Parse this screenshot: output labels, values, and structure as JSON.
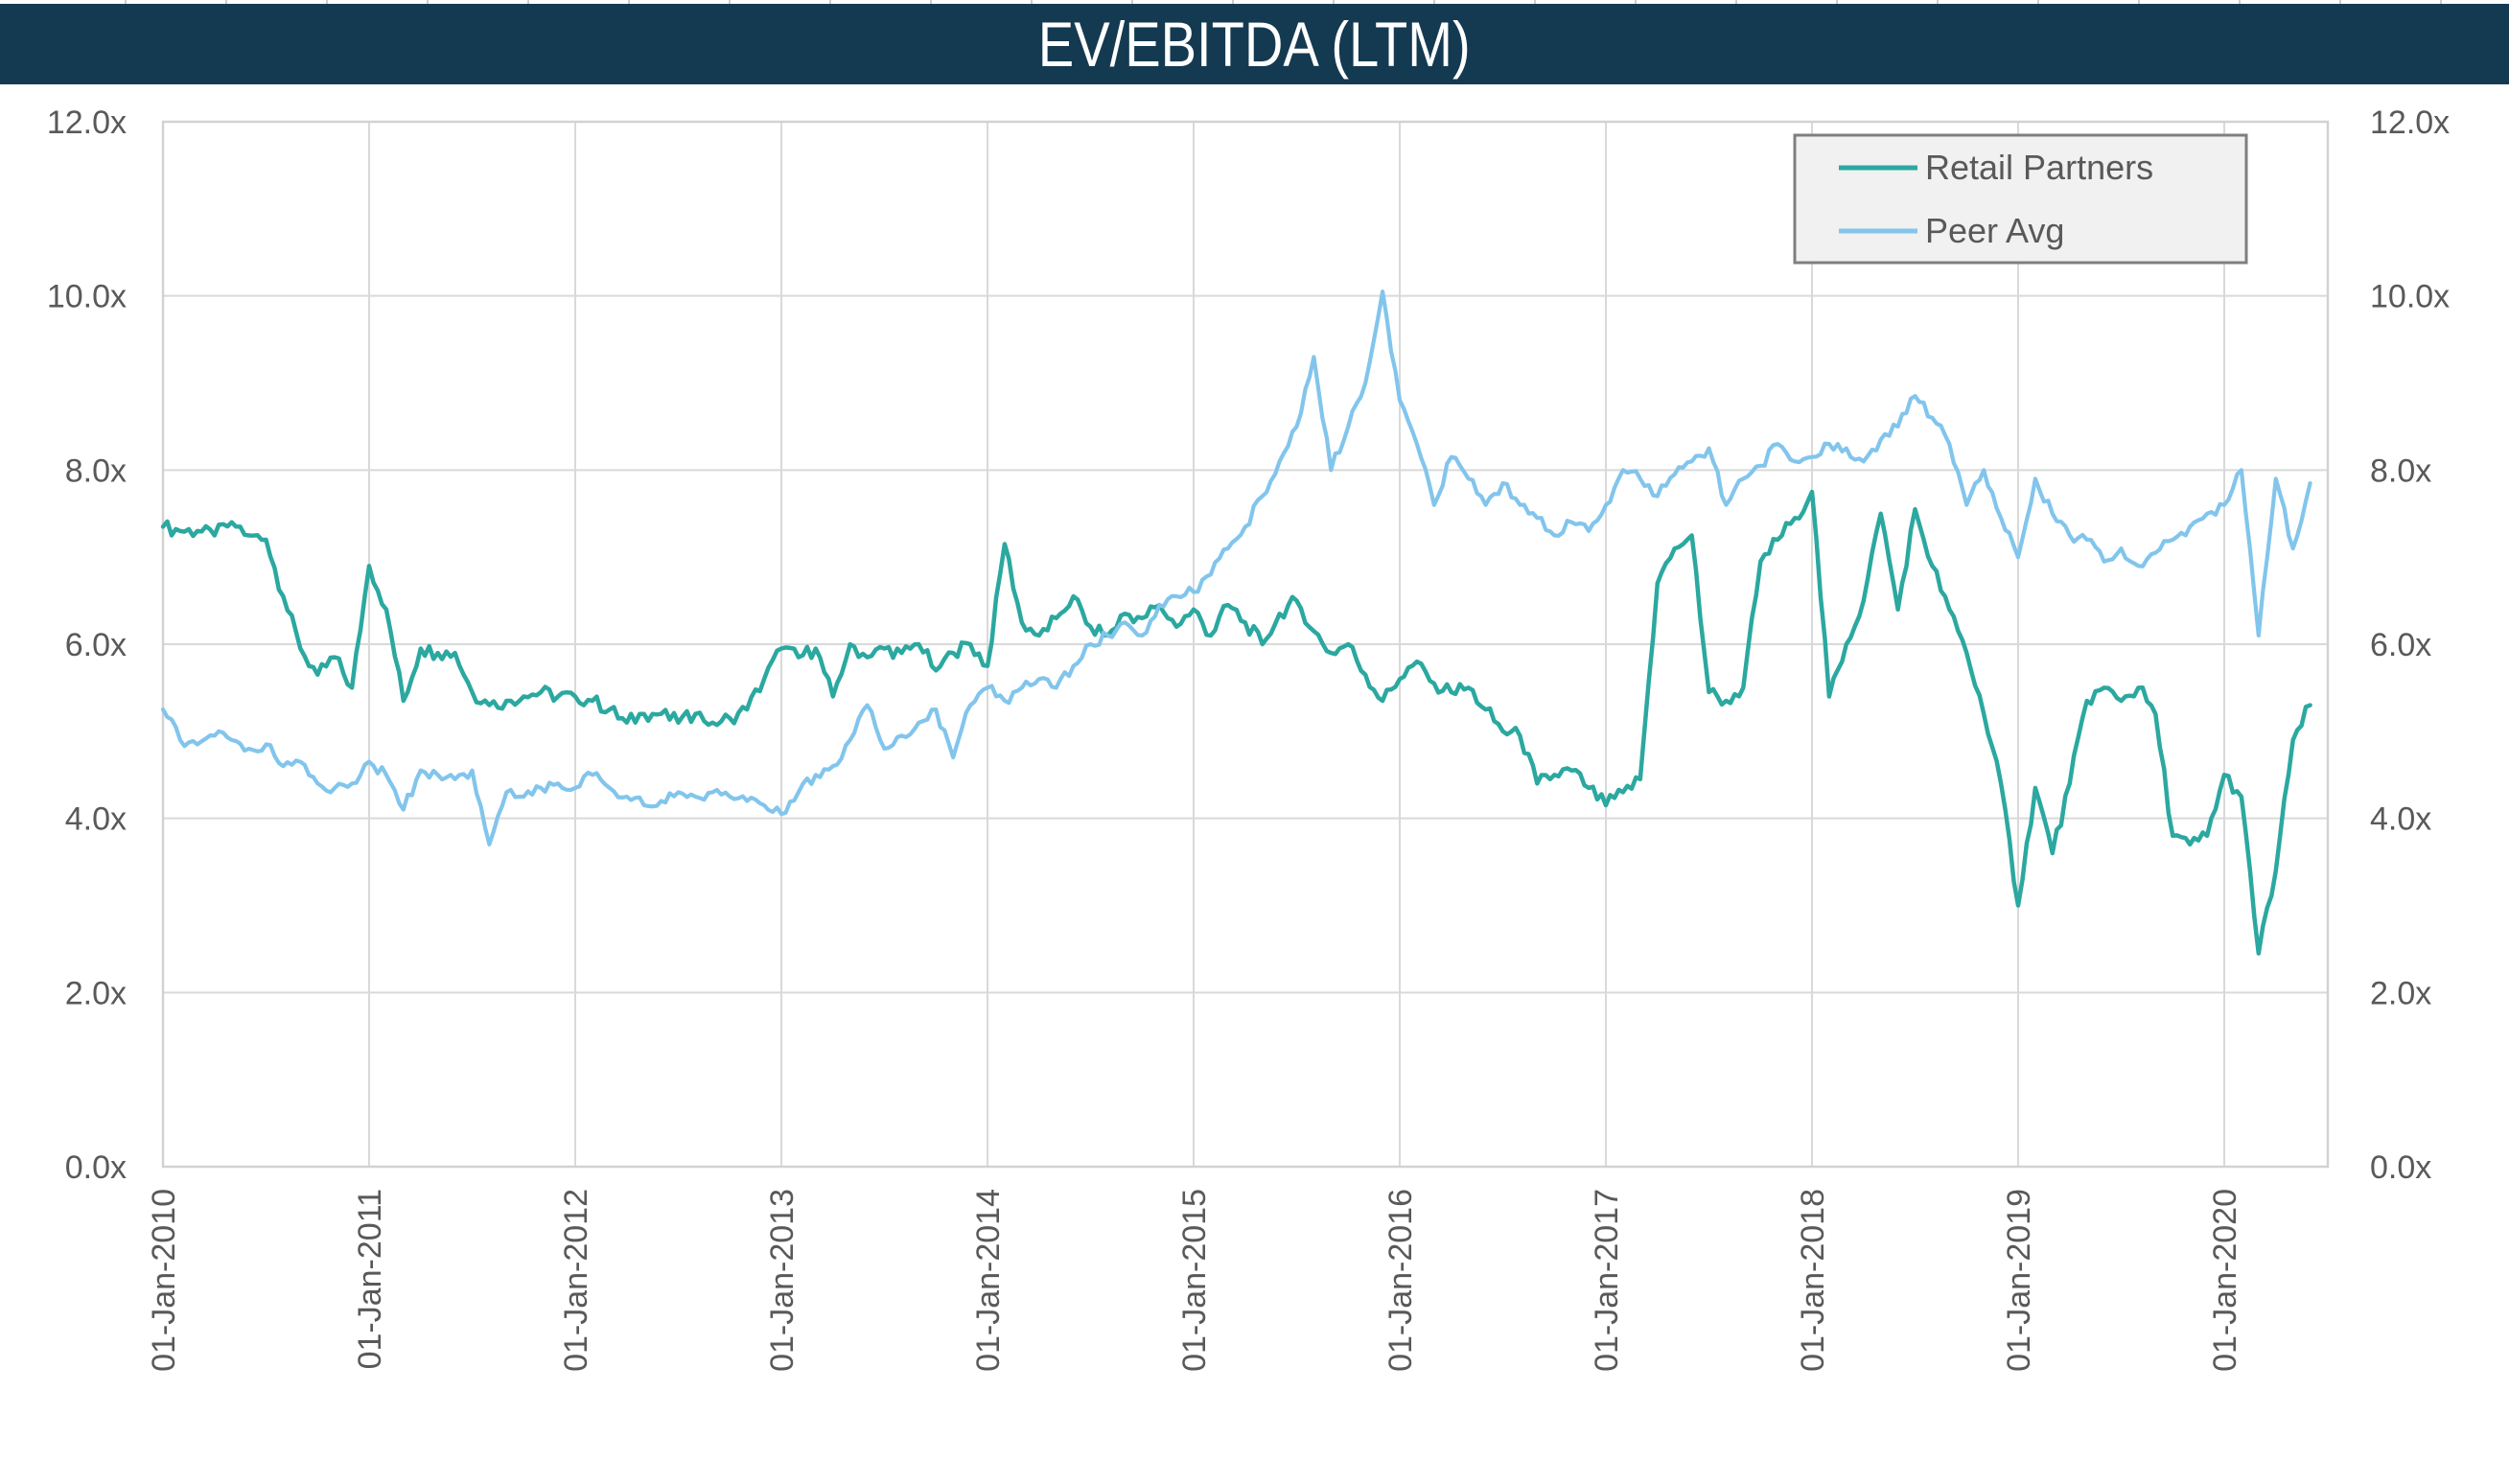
{
  "title_bar": {
    "text": "EV/EBITDA (LTM)",
    "bg_color": "#143A52",
    "text_color": "#FFFFFF"
  },
  "chart_data": {
    "type": "line",
    "title": "EV/EBITDA (LTM)",
    "xlabel": "",
    "ylabel": "",
    "y_axis": {
      "range": [
        0,
        12
      ],
      "tick_step": 2,
      "tick_labels": [
        "0.0x",
        "2.0x",
        "4.0x",
        "6.0x",
        "8.0x",
        "10.0x",
        "12.0x"
      ],
      "sides": "both",
      "label_color": "#595959"
    },
    "x_axis": {
      "tick_labels": [
        "01-Jan-2010",
        "01-Jan-2011",
        "01-Jan-2012",
        "01-Jan-2013",
        "01-Jan-2014",
        "01-Jan-2015",
        "01-Jan-2016",
        "01-Jan-2017",
        "01-Jan-2018",
        "01-Jan-2019",
        "01-Jan-2020"
      ],
      "start": "Jan-2010",
      "end": "Jun-2020",
      "sampling": "monthly",
      "label_rotation_deg": -90,
      "label_color": "#595959"
    },
    "grid": true,
    "grid_color": "#D9D9D9",
    "plot_border_color": "#D2D2D2",
    "legend": {
      "position": "top-right",
      "bg_color": "#F1F1F1",
      "border_color": "#7F7F7F",
      "text_color": "#595959",
      "entries": [
        "Retail Partners",
        "Peer Avg"
      ]
    },
    "series": [
      {
        "name": "Retail Partners",
        "color": "#2BA8A0",
        "values": [
          7.35,
          7.3,
          7.3,
          7.25,
          7.4,
          7.25,
          7.2,
          6.55,
          5.95,
          5.65,
          5.85,
          5.5,
          6.9,
          6.4,
          5.35,
          5.95,
          5.9,
          5.9,
          5.45,
          5.3,
          5.35,
          5.4,
          5.45,
          5.4,
          5.4,
          5.35,
          5.25,
          5.1,
          5.2,
          5.2,
          5.1,
          5.2,
          5.1,
          5.15,
          5.25,
          5.6,
          5.95,
          5.85,
          5.95,
          5.4,
          6.0,
          5.85,
          5.95,
          5.9,
          6.0,
          5.7,
          5.9,
          6.0,
          5.75,
          7.15,
          6.25,
          6.1,
          6.3,
          6.55,
          6.2,
          6.1,
          6.35,
          6.3,
          6.45,
          6.2,
          6.4,
          6.1,
          6.45,
          6.25,
          6.0,
          6.35,
          6.5,
          6.15,
          5.9,
          6.0,
          5.65,
          5.35,
          5.6,
          5.8,
          5.55,
          5.45,
          5.5,
          5.25,
          5.0,
          4.95,
          4.4,
          4.5,
          4.55,
          4.35,
          4.15,
          4.3,
          4.45,
          6.7,
          7.1,
          7.25,
          5.45,
          5.35,
          5.5,
          6.95,
          7.2,
          7.45,
          7.75,
          5.4,
          6.0,
          6.5,
          7.5,
          6.4,
          7.55,
          6.9,
          6.4,
          5.9,
          5.2,
          4.4,
          3.0,
          4.35,
          3.6,
          4.4,
          5.35,
          5.5,
          5.35,
          5.5,
          5.2,
          3.8,
          3.7,
          3.8,
          4.5,
          4.25,
          2.45,
          3.4,
          4.9,
          5.3
        ]
      },
      {
        "name": "Peer Avg",
        "color": "#82C5EC",
        "values": [
          5.25,
          4.9,
          4.85,
          4.95,
          4.9,
          4.8,
          4.85,
          4.6,
          4.65,
          4.4,
          4.35,
          4.4,
          4.65,
          4.5,
          4.1,
          4.55,
          4.5,
          4.45,
          4.55,
          3.7,
          4.3,
          4.25,
          4.35,
          4.4,
          4.35,
          4.5,
          4.35,
          4.25,
          4.15,
          4.2,
          4.3,
          4.25,
          4.3,
          4.25,
          4.2,
          4.15,
          4.05,
          4.3,
          4.5,
          4.6,
          4.9,
          5.3,
          4.8,
          4.95,
          5.1,
          5.25,
          4.7,
          5.3,
          5.5,
          5.35,
          5.5,
          5.6,
          5.5,
          5.75,
          6.0,
          6.1,
          6.25,
          6.1,
          6.45,
          6.55,
          6.6,
          6.8,
          7.1,
          7.35,
          7.7,
          8.1,
          8.5,
          9.3,
          8.0,
          8.5,
          9.0,
          10.05,
          8.8,
          8.3,
          7.6,
          8.15,
          7.9,
          7.6,
          7.85,
          7.6,
          7.45,
          7.25,
          7.4,
          7.3,
          7.6,
          8.0,
          7.9,
          7.7,
          7.95,
          8.1,
          8.25,
          7.6,
          7.9,
          8.05,
          8.3,
          8.1,
          8.15,
          8.3,
          8.25,
          8.1,
          8.35,
          8.5,
          8.85,
          8.6,
          8.3,
          7.6,
          8.0,
          7.45,
          7.0,
          7.9,
          7.5,
          7.25,
          7.2,
          6.95,
          7.1,
          6.9,
          7.05,
          7.2,
          7.35,
          7.5,
          7.6,
          8.0,
          6.1,
          7.9,
          7.1,
          7.85
        ]
      }
    ]
  }
}
